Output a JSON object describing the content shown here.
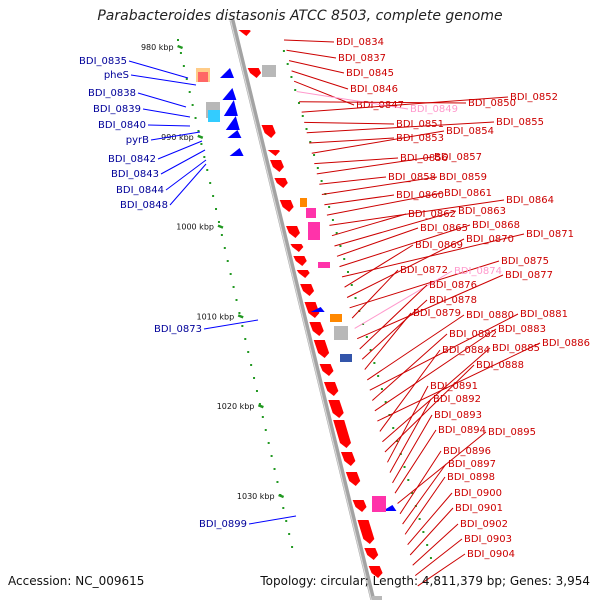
{
  "title": "Parabacteroides distasonis ATCC 8503, complete genome",
  "accession": "Accession: NC_009615",
  "summary": "Topology: circular; Length: 4,811,379 bp; Genes: 3,954",
  "colors": {
    "backbone": "#a3a3a3",
    "forward_gene": "#ff0000",
    "reverse_gene": "#0000ff",
    "right_label": "#cc0000",
    "left_label": "#000099",
    "pseudo_label": "#ff99cc",
    "tick": "#229922",
    "other": "#b8b8b8",
    "rna": "#ff33aa",
    "cyan": "#33ccff"
  },
  "scale": {
    "ticks": [
      {
        "label": "980 kbp",
        "kbp": 980
      },
      {
        "label": "990 kbp",
        "kbp": 990
      },
      {
        "label": "1000 kbp",
        "kbp": 1000
      },
      {
        "label": "1010 kbp",
        "kbp": 1010
      },
      {
        "label": "1020 kbp",
        "kbp": 1020
      },
      {
        "label": "1030 kbp",
        "kbp": 1030
      }
    ]
  },
  "left_labels": [
    "BDI_0835",
    "pheS",
    "BDI_0838",
    "BDI_0839",
    "BDI_0840",
    "pyrB",
    "BDI_0842",
    "BDI_0843",
    "BDI_0844",
    "BDI_0848",
    "BDI_0873",
    "BDI_0899"
  ],
  "right_labels": [
    {
      "name": "BDI_0834"
    },
    {
      "name": "BDI_0837"
    },
    {
      "name": "BDI_0845"
    },
    {
      "name": "BDI_0846"
    },
    {
      "name": "BDI_0847"
    },
    {
      "name": "BDI_0849",
      "pseudo": true
    },
    {
      "name": "BDI_0850"
    },
    {
      "name": "BDI_0852"
    },
    {
      "name": "BDI_0851"
    },
    {
      "name": "BDI_0855"
    },
    {
      "name": "BDI_0853"
    },
    {
      "name": "BDI_0854"
    },
    {
      "name": "BDI_0856"
    },
    {
      "name": "BDI_0857"
    },
    {
      "name": "BDI_0858"
    },
    {
      "name": "BDI_0859"
    },
    {
      "name": "BDI_0860"
    },
    {
      "name": "BDI_0861"
    },
    {
      "name": "BDI_0864"
    },
    {
      "name": "BDI_0862"
    },
    {
      "name": "BDI_0863"
    },
    {
      "name": "BDI_0865"
    },
    {
      "name": "BDI_0868"
    },
    {
      "name": "BDI_0871"
    },
    {
      "name": "BDI_0869"
    },
    {
      "name": "BDI_0870"
    },
    {
      "name": "BDI_0875"
    },
    {
      "name": "BDI_0872"
    },
    {
      "name": "BDI_0874",
      "pseudo": true
    },
    {
      "name": "BDI_0877"
    },
    {
      "name": "BDI_0876"
    },
    {
      "name": "BDI_0878"
    },
    {
      "name": "BDI_0879"
    },
    {
      "name": "BDI_0880"
    },
    {
      "name": "BDI_0881"
    },
    {
      "name": "BDI_0882"
    },
    {
      "name": "BDI_0883"
    },
    {
      "name": "BDI_0886"
    },
    {
      "name": "BDI_0884"
    },
    {
      "name": "BDI_0885"
    },
    {
      "name": "BDI_0888"
    },
    {
      "name": "BDI_0891"
    },
    {
      "name": "BDI_0892"
    },
    {
      "name": "BDI_0893"
    },
    {
      "name": "BDI_0894"
    },
    {
      "name": "BDI_0895"
    },
    {
      "name": "BDI_0896"
    },
    {
      "name": "BDI_0897"
    },
    {
      "name": "BDI_0898"
    },
    {
      "name": "BDI_0900"
    },
    {
      "name": "BDI_0901"
    },
    {
      "name": "BDI_0902"
    },
    {
      "name": "BDI_0903"
    },
    {
      "name": "BDI_0904"
    }
  ]
}
